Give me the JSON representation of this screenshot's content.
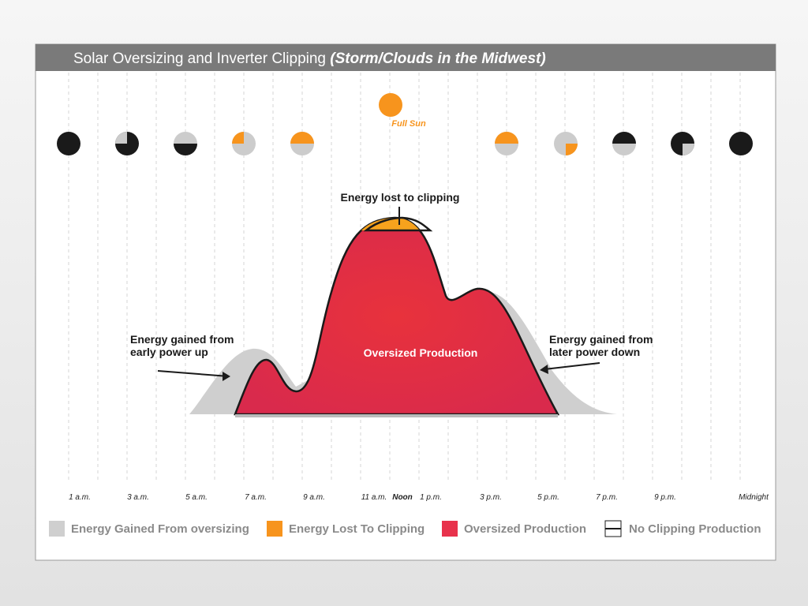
{
  "header": {
    "title": "Solar Oversizing and Inverter Clipping",
    "title_emphasis": "(Storm/Clouds in the Midwest)"
  },
  "annotations": {
    "full_sun": "Full Sun",
    "clipping": "Energy lost to clipping",
    "early": [
      "Energy gained from",
      "early power up"
    ],
    "late": [
      "Energy gained from",
      "later power down"
    ],
    "production": "Oversized Production"
  },
  "time_axis": [
    "1 a.m.",
    "3 a.m.",
    "5 a.m.",
    "7 a.m.",
    "9 a.m.",
    "11 a.m.",
    "Noon",
    "1 p.m.",
    "3 p.m.",
    "5 p.m.",
    "7 p.m.",
    "9 p.m.",
    "Midnight"
  ],
  "legend": [
    "Energy Gained From oversizing",
    "Energy Lost To Clipping",
    "Oversized Production",
    "No Clipping Production"
  ]
}
